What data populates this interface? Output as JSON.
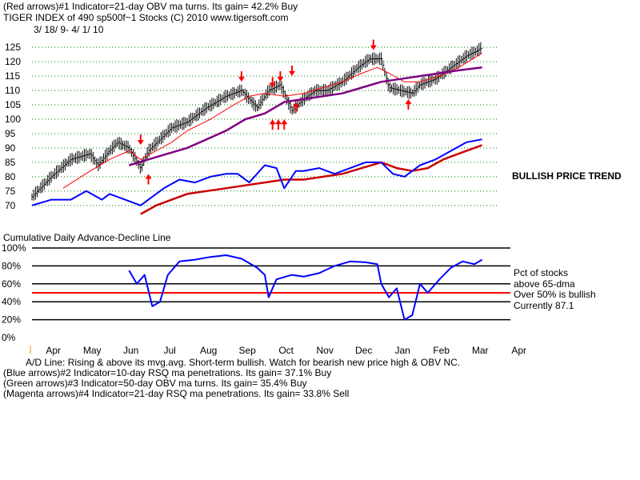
{
  "header": {
    "line1": "(Red arrows)#1 Indicator=21-day OBV ma turns. Its gain= 42.2% Buy",
    "line2": "TIGER INDEX of  490 sp500f~1 Stocks  (C) 2010  www.tigersoft.com",
    "line3": "3/ 18/ 9- 4/ 1/ 10"
  },
  "side_notes": {
    "trend": "BULLISH PRICE TREND",
    "pct_line1": "Pct of stocks",
    "pct_line2": "above 65-dma",
    "pct_line3": "Over 50% is bullish",
    "pct_line4": "Currently  87.1"
  },
  "ad_title": "Cumulative Daily Advance-Decline Line",
  "footer": {
    "line1": "A/D Line: Rising & above its mvg.avg. Short-term bullish. Watch for bearish new price high & OBV NC.",
    "line2": "(Blue arrows)#2 Indicator=10-day RSQ ma penetrations. Its gain= 37.1% Buy",
    "line3": "(Green arrows)#3 Indicator=50-day OBV ma turns. Its gain= 35.4% Buy",
    "line4": "(Magenta arrows)#4 Indicator=21-day RSQ ma penetrations. Its gain= 33.8% Sell"
  },
  "colors": {
    "price_bars": "#000000",
    "ma_short": "#ff0000",
    "ma_long": "#800080",
    "ad_line": "#0000ff",
    "ad_ma": "#cc0000",
    "pct_line": "#0000ff",
    "threshold_line": "#ff0000",
    "arrows": "#ff0000",
    "gridline": "#008000"
  },
  "chart_data": {
    "type": "line",
    "x_tick_labels": [
      "Apr",
      "May",
      "Jun",
      "Jul",
      "Aug",
      "Sep",
      "Oct",
      "Nov",
      "Dec",
      "Jan",
      "Feb",
      "Mar",
      "Apr"
    ],
    "price_panel": {
      "y_ticks": [
        70,
        75,
        80,
        85,
        90,
        95,
        100,
        105,
        110,
        115,
        120,
        125
      ],
      "ylim": [
        68,
        127
      ],
      "series": [
        {
          "name": "",
          "kind": "price",
          "points": [
            [
              0,
              73
            ],
            [
              0.5,
              80
            ],
            [
              1,
              86
            ],
            [
              1.5,
              88
            ],
            [
              1.7,
              84
            ],
            [
              2,
              89
            ],
            [
              2.2,
              92
            ],
            [
              2.5,
              90
            ],
            [
              2.8,
              83
            ],
            [
              3,
              89
            ],
            [
              3.3,
              93
            ],
            [
              3.6,
              97
            ],
            [
              4,
              99
            ],
            [
              4.5,
              104
            ],
            [
              5,
              108
            ],
            [
              5.4,
              110
            ],
            [
              5.8,
              104
            ],
            [
              6.1,
              110
            ],
            [
              6.4,
              112
            ],
            [
              6.7,
              103
            ],
            [
              7,
              107
            ],
            [
              7.3,
              110
            ],
            [
              7.6,
              110
            ],
            [
              8,
              113
            ],
            [
              8.4,
              118
            ],
            [
              8.7,
              121
            ],
            [
              9,
              121
            ],
            [
              9.2,
              111
            ],
            [
              9.5,
              110
            ],
            [
              9.8,
              109
            ],
            [
              10,
              112
            ],
            [
              10.4,
              114
            ],
            [
              10.8,
              118
            ],
            [
              11.2,
              122
            ],
            [
              11.5,
              124
            ],
            [
              11.6,
              125
            ]
          ]
        },
        {
          "name": "",
          "kind": "ma21",
          "points": [
            [
              0.8,
              76
            ],
            [
              1.5,
              82
            ],
            [
              2,
              86
            ],
            [
              2.5,
              89
            ],
            [
              2.8,
              86
            ],
            [
              3.2,
              89
            ],
            [
              3.6,
              92
            ],
            [
              4,
              96
            ],
            [
              4.6,
              100
            ],
            [
              5.2,
              105
            ],
            [
              5.6,
              108
            ],
            [
              6,
              109
            ],
            [
              6.5,
              108
            ],
            [
              7,
              109
            ],
            [
              7.5,
              111
            ],
            [
              8,
              113
            ],
            [
              8.5,
              116
            ],
            [
              8.9,
              118
            ],
            [
              9.2,
              116
            ],
            [
              9.6,
              113
            ],
            [
              10,
              113
            ],
            [
              10.5,
              115
            ],
            [
              11,
              118
            ],
            [
              11.6,
              123
            ]
          ]
        },
        {
          "name": "",
          "kind": "ma65",
          "points": [
            [
              2.5,
              84
            ],
            [
              3,
              86
            ],
            [
              3.5,
              88
            ],
            [
              4,
              90
            ],
            [
              4.5,
              93
            ],
            [
              5,
              96
            ],
            [
              5.5,
              100
            ],
            [
              6,
              102
            ],
            [
              6.5,
              106
            ],
            [
              7,
              107
            ],
            [
              7.5,
              108
            ],
            [
              8,
              109
            ],
            [
              8.5,
              111
            ],
            [
              9,
              113
            ],
            [
              9.5,
              114
            ],
            [
              10,
              115
            ],
            [
              10.5,
              116
            ],
            [
              11,
              117
            ],
            [
              11.6,
              118
            ]
          ]
        }
      ],
      "ad_series": [
        {
          "name": "",
          "kind": "ad_line",
          "points": [
            [
              0,
              70
            ],
            [
              0.5,
              72
            ],
            [
              1,
              72
            ],
            [
              1.4,
              75
            ],
            [
              1.8,
              72
            ],
            [
              2,
              74
            ],
            [
              2.4,
              72
            ],
            [
              2.8,
              70
            ],
            [
              3,
              72
            ],
            [
              3.4,
              76
            ],
            [
              3.8,
              79
            ],
            [
              4.2,
              78
            ],
            [
              4.6,
              80
            ],
            [
              5,
              81
            ],
            [
              5.3,
              81
            ],
            [
              5.6,
              78
            ],
            [
              6,
              84
            ],
            [
              6.3,
              83
            ],
            [
              6.5,
              76
            ],
            [
              6.8,
              82
            ],
            [
              7,
              82
            ],
            [
              7.4,
              83
            ],
            [
              7.8,
              81
            ],
            [
              8.2,
              83
            ],
            [
              8.6,
              85
            ],
            [
              9,
              85
            ],
            [
              9.3,
              81
            ],
            [
              9.6,
              80
            ],
            [
              10,
              84
            ],
            [
              10.4,
              86
            ],
            [
              10.8,
              89
            ],
            [
              11.2,
              92
            ],
            [
              11.6,
              93
            ]
          ]
        },
        {
          "name": "",
          "kind": "ad_ma",
          "points": [
            [
              2.8,
              67
            ],
            [
              3.2,
              70
            ],
            [
              3.6,
              72
            ],
            [
              4,
              74
            ],
            [
              4.5,
              75
            ],
            [
              5,
              76
            ],
            [
              5.5,
              77
            ],
            [
              6,
              78
            ],
            [
              6.5,
              79
            ],
            [
              7,
              79
            ],
            [
              7.5,
              80
            ],
            [
              8,
              81
            ],
            [
              8.5,
              83
            ],
            [
              9,
              85
            ],
            [
              9.4,
              83
            ],
            [
              9.8,
              82
            ],
            [
              10.2,
              83
            ],
            [
              10.6,
              86
            ],
            [
              11,
              88
            ],
            [
              11.6,
              91
            ]
          ]
        }
      ]
    },
    "pct_panel": {
      "y_ticks": [
        "0%",
        "20%",
        "40%",
        "60%",
        "80%",
        "100%"
      ],
      "ylim": [
        0,
        100
      ],
      "threshold": 50,
      "current": 87.1,
      "series": [
        {
          "name": "",
          "points": [
            [
              2.5,
              75
            ],
            [
              2.7,
              60
            ],
            [
              2.9,
              70
            ],
            [
              3.1,
              35
            ],
            [
              3.3,
              40
            ],
            [
              3.5,
              70
            ],
            [
              3.8,
              85
            ],
            [
              4.2,
              87
            ],
            [
              4.6,
              90
            ],
            [
              5.0,
              92
            ],
            [
              5.4,
              88
            ],
            [
              5.8,
              78
            ],
            [
              6.0,
              70
            ],
            [
              6.1,
              45
            ],
            [
              6.3,
              65
            ],
            [
              6.7,
              70
            ],
            [
              7.0,
              68
            ],
            [
              7.4,
              72
            ],
            [
              7.8,
              80
            ],
            [
              8.2,
              85
            ],
            [
              8.6,
              84
            ],
            [
              8.9,
              82
            ],
            [
              9.0,
              60
            ],
            [
              9.2,
              45
            ],
            [
              9.4,
              55
            ],
            [
              9.6,
              20
            ],
            [
              9.8,
              25
            ],
            [
              10.0,
              60
            ],
            [
              10.2,
              50
            ],
            [
              10.5,
              65
            ],
            [
              10.8,
              78
            ],
            [
              11.1,
              85
            ],
            [
              11.4,
              82
            ],
            [
              11.6,
              87
            ]
          ]
        }
      ]
    },
    "red_arrows_down": [
      [
        2.8,
        93
      ],
      [
        5.4,
        115
      ],
      [
        6.2,
        113
      ],
      [
        6.4,
        115
      ],
      [
        6.7,
        117
      ],
      [
        8.8,
        126
      ]
    ],
    "red_arrows_up": [
      [
        3.0,
        79
      ],
      [
        6.2,
        98
      ],
      [
        6.35,
        98
      ],
      [
        6.5,
        98
      ],
      [
        6.8,
        104
      ],
      [
        9.7,
        105
      ]
    ]
  }
}
